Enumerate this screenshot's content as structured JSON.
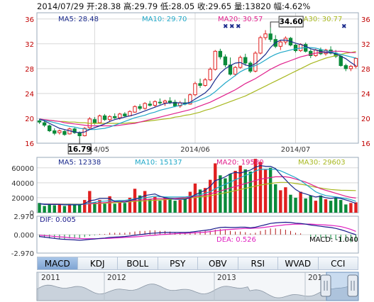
{
  "header": {
    "date": "2014/07/29",
    "open_label": "开:",
    "open": "28.38",
    "high_label": "高:",
    "high": "29.79",
    "low_label": "低:",
    "low": "28.05",
    "close_label": "收:",
    "close": "29.65",
    "volume_label": "量:",
    "volume": "13820",
    "change_label": "幅:",
    "change": "4.62%"
  },
  "colors": {
    "up": "#e02020",
    "down": "#0a8a3a",
    "ma5": "#1a2a8c",
    "ma10": "#20a8c8",
    "ma20": "#e0208c",
    "ma30": "#a8b820",
    "dif": "#1a1a8c",
    "dea": "#e020c0",
    "macd_up": "#b01818",
    "macd_down": "#0a8a3a",
    "grid": "#d8d8d8",
    "axis_text": "#c00000"
  },
  "legend": {
    "price": {
      "ma5": "MA5: 28.48",
      "ma10": "MA10: 29.70",
      "ma20": "MA20: 30.57",
      "ma30": "MA30: 30.77"
    },
    "volume": {
      "ma5": "MA5: 12338",
      "ma10": "MA10: 15137",
      "ma20": "MA20: 19580",
      "ma30": "MA30: 29603"
    },
    "macd": {
      "dif": "DIF: 0.005",
      "dea": "DEA: 0.526",
      "macd": "MACD: -1.040"
    }
  },
  "annotations": {
    "max_label": "34.60",
    "min_label": "16.79"
  },
  "tabs": [
    "MACD",
    "KDJ",
    "BOLL",
    "PSY",
    "OBV",
    "RSI",
    "WVAD",
    "CCI"
  ],
  "active_tab": "MACD",
  "navigator": {
    "year_labels": [
      "2011",
      "2012",
      "2013",
      "201"
    ]
  },
  "chart_data": [
    {
      "type": "candlestick",
      "name": "price",
      "x_ticks": [
        "2014/05",
        "2014/06",
        "2014/07"
      ],
      "y_ticks": [
        "16",
        "20",
        "24",
        "28",
        "32",
        "36"
      ],
      "ylim": [
        16,
        37
      ],
      "grid": true,
      "candles": [
        {
          "o": 19.6,
          "h": 19.9,
          "l": 19.1,
          "c": 19.4
        },
        {
          "o": 19.3,
          "h": 19.6,
          "l": 18.6,
          "c": 18.9
        },
        {
          "o": 18.8,
          "h": 19.0,
          "l": 17.8,
          "c": 18.0
        },
        {
          "o": 18.0,
          "h": 18.4,
          "l": 17.3,
          "c": 17.6
        },
        {
          "o": 17.7,
          "h": 18.2,
          "l": 17.4,
          "c": 18.0
        },
        {
          "o": 17.9,
          "h": 18.1,
          "l": 17.2,
          "c": 17.4
        },
        {
          "o": 17.5,
          "h": 18.5,
          "l": 17.4,
          "c": 18.3
        },
        {
          "o": 18.3,
          "h": 18.5,
          "l": 17.5,
          "c": 17.7
        },
        {
          "o": 17.7,
          "h": 17.9,
          "l": 16.79,
          "c": 17.2
        },
        {
          "o": 17.2,
          "h": 18.6,
          "l": 17.1,
          "c": 18.4
        },
        {
          "o": 18.5,
          "h": 20.2,
          "l": 18.3,
          "c": 19.9
        },
        {
          "o": 19.8,
          "h": 20.2,
          "l": 19.0,
          "c": 19.3
        },
        {
          "o": 19.3,
          "h": 20.6,
          "l": 19.2,
          "c": 20.4
        },
        {
          "o": 20.4,
          "h": 20.7,
          "l": 19.6,
          "c": 19.8
        },
        {
          "o": 19.8,
          "h": 20.5,
          "l": 19.4,
          "c": 20.3
        },
        {
          "o": 20.3,
          "h": 20.8,
          "l": 19.9,
          "c": 20.1
        },
        {
          "o": 20.1,
          "h": 20.9,
          "l": 19.8,
          "c": 20.7
        },
        {
          "o": 20.7,
          "h": 21.0,
          "l": 20.2,
          "c": 20.4
        },
        {
          "o": 20.4,
          "h": 21.3,
          "l": 20.3,
          "c": 21.1
        },
        {
          "o": 21.0,
          "h": 22.1,
          "l": 20.9,
          "c": 21.9
        },
        {
          "o": 21.9,
          "h": 22.3,
          "l": 21.3,
          "c": 21.6
        },
        {
          "o": 21.6,
          "h": 22.6,
          "l": 21.4,
          "c": 22.4
        },
        {
          "o": 22.3,
          "h": 22.8,
          "l": 21.9,
          "c": 22.1
        },
        {
          "o": 22.1,
          "h": 22.9,
          "l": 21.8,
          "c": 22.7
        },
        {
          "o": 22.6,
          "h": 23.2,
          "l": 22.2,
          "c": 22.5
        },
        {
          "o": 22.5,
          "h": 23.0,
          "l": 22.0,
          "c": 22.8
        },
        {
          "o": 22.8,
          "h": 23.4,
          "l": 22.3,
          "c": 22.6
        },
        {
          "o": 22.6,
          "h": 23.0,
          "l": 21.8,
          "c": 22.0
        },
        {
          "o": 22.0,
          "h": 22.8,
          "l": 21.7,
          "c": 22.5
        },
        {
          "o": 22.5,
          "h": 23.2,
          "l": 22.1,
          "c": 22.3
        },
        {
          "o": 22.3,
          "h": 24.0,
          "l": 22.2,
          "c": 23.8
        },
        {
          "o": 23.8,
          "h": 25.9,
          "l": 23.6,
          "c": 25.6
        },
        {
          "o": 25.6,
          "h": 26.4,
          "l": 24.9,
          "c": 25.3
        },
        {
          "o": 25.3,
          "h": 26.5,
          "l": 25.1,
          "c": 26.2
        },
        {
          "o": 26.2,
          "h": 28.2,
          "l": 26.0,
          "c": 27.9
        },
        {
          "o": 27.9,
          "h": 31.0,
          "l": 27.7,
          "c": 30.8
        },
        {
          "o": 30.8,
          "h": 31.2,
          "l": 29.5,
          "c": 29.9
        },
        {
          "o": 29.9,
          "h": 30.3,
          "l": 28.2,
          "c": 28.6
        },
        {
          "o": 28.6,
          "h": 29.8,
          "l": 26.9,
          "c": 27.1
        },
        {
          "o": 27.1,
          "h": 28.4,
          "l": 26.8,
          "c": 28.2
        },
        {
          "o": 28.2,
          "h": 30.1,
          "l": 28.0,
          "c": 29.8
        },
        {
          "o": 29.8,
          "h": 30.4,
          "l": 28.5,
          "c": 28.9
        },
        {
          "o": 28.9,
          "h": 29.2,
          "l": 27.3,
          "c": 27.6
        },
        {
          "o": 27.6,
          "h": 30.8,
          "l": 27.4,
          "c": 30.5
        },
        {
          "o": 30.5,
          "h": 33.3,
          "l": 30.3,
          "c": 33.0
        },
        {
          "o": 33.0,
          "h": 34.2,
          "l": 32.6,
          "c": 33.6
        },
        {
          "o": 33.6,
          "h": 34.6,
          "l": 32.3,
          "c": 32.7
        },
        {
          "o": 32.7,
          "h": 33.4,
          "l": 31.3,
          "c": 31.6
        },
        {
          "o": 31.6,
          "h": 32.6,
          "l": 31.0,
          "c": 32.3
        },
        {
          "o": 32.3,
          "h": 33.2,
          "l": 31.9,
          "c": 32.9
        },
        {
          "o": 32.9,
          "h": 33.1,
          "l": 31.6,
          "c": 31.8
        },
        {
          "o": 31.8,
          "h": 32.0,
          "l": 30.6,
          "c": 30.9
        },
        {
          "o": 30.9,
          "h": 32.1,
          "l": 30.7,
          "c": 31.9
        },
        {
          "o": 31.9,
          "h": 32.2,
          "l": 30.6,
          "c": 30.8
        },
        {
          "o": 30.8,
          "h": 31.1,
          "l": 29.7,
          "c": 30.1
        },
        {
          "o": 30.1,
          "h": 31.2,
          "l": 29.9,
          "c": 31.0
        },
        {
          "o": 31.0,
          "h": 31.4,
          "l": 30.2,
          "c": 30.4
        },
        {
          "o": 30.4,
          "h": 31.2,
          "l": 30.1,
          "c": 31.0
        },
        {
          "o": 31.0,
          "h": 31.6,
          "l": 30.3,
          "c": 30.5
        },
        {
          "o": 30.5,
          "h": 31.0,
          "l": 29.7,
          "c": 30.0
        },
        {
          "o": 30.0,
          "h": 30.4,
          "l": 28.3,
          "c": 28.5
        },
        {
          "o": 28.5,
          "h": 28.8,
          "l": 27.6,
          "c": 28.0
        },
        {
          "o": 28.0,
          "h": 28.6,
          "l": 27.6,
          "c": 28.38
        },
        {
          "o": 28.38,
          "h": 29.79,
          "l": 28.05,
          "c": 29.65
        }
      ],
      "ma5": [
        19.9,
        19.6,
        19.2,
        18.8,
        18.4,
        18.2,
        18.0,
        17.8,
        17.7,
        17.8,
        18.2,
        18.5,
        18.8,
        19.1,
        19.5,
        19.8,
        20.0,
        20.2,
        20.4,
        20.6,
        20.9,
        21.2,
        21.5,
        21.8,
        22.1,
        22.4,
        22.5,
        22.5,
        22.5,
        22.4,
        22.6,
        23.1,
        23.6,
        24.1,
        24.9,
        26.2,
        27.3,
        28.0,
        28.5,
        28.9,
        29.0,
        28.6,
        28.4,
        28.8,
        29.5,
        30.3,
        31.4,
        32.2,
        32.6,
        32.6,
        32.4,
        32.1,
        31.9,
        31.6,
        31.2,
        31.0,
        30.8,
        30.6,
        30.6,
        30.4,
        30.0,
        29.6,
        29.0,
        28.48
      ],
      "ma10": [
        19.8,
        19.7,
        19.5,
        19.3,
        19.1,
        18.9,
        18.7,
        18.6,
        18.4,
        18.3,
        18.2,
        18.2,
        18.3,
        18.4,
        18.6,
        18.9,
        19.2,
        19.5,
        19.8,
        20.1,
        20.3,
        20.5,
        20.8,
        21.0,
        21.3,
        21.5,
        21.7,
        21.9,
        22.1,
        22.3,
        22.5,
        22.7,
        23.0,
        23.3,
        23.7,
        24.3,
        25.0,
        25.7,
        26.3,
        26.9,
        27.5,
        27.9,
        28.2,
        28.5,
        28.9,
        29.4,
        29.9,
        30.3,
        30.6,
        30.8,
        31.0,
        31.2,
        31.3,
        31.4,
        31.4,
        31.3,
        31.1,
        30.9,
        30.7,
        30.5,
        30.3,
        30.1,
        29.9,
        29.7
      ],
      "ma20": [
        19.9,
        19.8,
        19.7,
        19.6,
        19.5,
        19.3,
        19.2,
        19.1,
        19.0,
        18.9,
        18.8,
        18.8,
        18.8,
        18.8,
        18.8,
        18.8,
        18.9,
        19.0,
        19.1,
        19.2,
        19.4,
        19.6,
        19.8,
        20.0,
        20.2,
        20.4,
        20.6,
        20.8,
        21.0,
        21.2,
        21.4,
        21.7,
        22.0,
        22.3,
        22.6,
        23.0,
        23.4,
        23.8,
        24.2,
        24.6,
        25.1,
        25.6,
        26.0,
        26.4,
        26.9,
        27.4,
        27.9,
        28.3,
        28.7,
        29.0,
        29.3,
        29.6,
        29.9,
        30.1,
        30.3,
        30.5,
        30.6,
        30.7,
        30.8,
        30.8,
        30.8,
        30.7,
        30.6,
        30.57
      ],
      "ma30": [
        19.8,
        19.7,
        19.7,
        19.6,
        19.5,
        19.5,
        19.4,
        19.4,
        19.3,
        19.3,
        19.2,
        19.2,
        19.2,
        19.2,
        19.2,
        19.2,
        19.2,
        19.2,
        19.3,
        19.3,
        19.4,
        19.5,
        19.6,
        19.7,
        19.8,
        19.9,
        20.0,
        20.2,
        20.3,
        20.5,
        20.6,
        20.8,
        21.0,
        21.3,
        21.5,
        21.8,
        22.1,
        22.4,
        22.7,
        23.0,
        23.3,
        23.6,
        24.0,
        24.4,
        24.8,
        25.2,
        25.6,
        26.0,
        26.4,
        26.8,
        27.2,
        27.6,
        28.0,
        28.4,
        28.8,
        29.1,
        29.4,
        29.7,
        29.9,
        30.1,
        30.3,
        30.5,
        30.6,
        30.77
      ]
    },
    {
      "type": "bar",
      "name": "volume",
      "y_ticks": [
        "0",
        "20000",
        "40000",
        "60000"
      ],
      "ylim": [
        0,
        74000
      ],
      "values": [
        13000,
        9000,
        12000,
        10000,
        11000,
        9000,
        12000,
        10000,
        11000,
        17000,
        29000,
        14000,
        17000,
        12000,
        22000,
        12000,
        14000,
        13000,
        20000,
        32000,
        23000,
        29000,
        18000,
        21000,
        16000,
        20000,
        18000,
        16000,
        17000,
        19000,
        28000,
        39000,
        31000,
        33000,
        44000,
        66000,
        50000,
        46000,
        52000,
        56000,
        63000,
        58000,
        55000,
        72000,
        68000,
        58000,
        60000,
        38000,
        30000,
        34000,
        24000,
        20000,
        28000,
        19000,
        23000,
        16000,
        23000,
        18000,
        16000,
        20000,
        17000,
        11000,
        13000,
        13820
      ],
      "ma5": [
        12000,
        11000,
        11000,
        11000,
        11000,
        10500,
        10500,
        10500,
        10500,
        12000,
        16000,
        17000,
        19000,
        19000,
        19000,
        15000,
        15000,
        14000,
        16000,
        18000,
        20000,
        23000,
        24000,
        25000,
        22000,
        20000,
        19000,
        18000,
        18000,
        18000,
        20000,
        24000,
        27000,
        30000,
        35000,
        43000,
        45000,
        48000,
        52000,
        54000,
        53000,
        55000,
        57000,
        61000,
        63000,
        62000,
        62000,
        59000,
        51000,
        44000,
        37000,
        31000,
        27000,
        25000,
        23000,
        21000,
        22000,
        20000,
        19000,
        20000,
        19000,
        17000,
        15000,
        12338
      ],
      "ma10": [
        12000,
        11500,
        11200,
        11000,
        11000,
        11000,
        11000,
        11000,
        11000,
        11500,
        13000,
        14000,
        15000,
        15500,
        16000,
        16000,
        16500,
        16500,
        17500,
        18500,
        19000,
        20000,
        21000,
        22000,
        21500,
        21000,
        21000,
        21000,
        21000,
        21000,
        22000,
        23000,
        24000,
        26000,
        28000,
        32000,
        35000,
        38000,
        41000,
        44000,
        47000,
        50000,
        52000,
        56000,
        58000,
        58000,
        58000,
        58000,
        56000,
        53000,
        50000,
        47000,
        43000,
        38000,
        33000,
        28000,
        25000,
        23000,
        22000,
        21000,
        20000,
        19000,
        17500,
        15137
      ],
      "ma20": [
        12000,
        11800,
        11600,
        11500,
        11400,
        11300,
        11200,
        11200,
        11200,
        11400,
        12000,
        12500,
        13000,
        13500,
        14000,
        14500,
        15000,
        15500,
        16000,
        16500,
        17000,
        17500,
        18000,
        18500,
        18500,
        18500,
        19000,
        19000,
        19500,
        20000,
        20500,
        21500,
        22500,
        23500,
        25000,
        27000,
        29000,
        31000,
        33000,
        35000,
        37000,
        39000,
        41000,
        43000,
        45000,
        46000,
        47000,
        48000,
        48000,
        48000,
        47000,
        45000,
        43000,
        41000,
        38000,
        35000,
        32000,
        30000,
        28000,
        26000,
        24000,
        22000,
        20500,
        19580
      ],
      "ma30": [
        11500,
        11500,
        11500,
        11500,
        11500,
        11500,
        11500,
        11500,
        11500,
        11600,
        11800,
        12000,
        12300,
        12600,
        13000,
        13400,
        13800,
        14200,
        14600,
        15000,
        15400,
        15800,
        16200,
        16600,
        17000,
        17400,
        17800,
        18200,
        18600,
        19000,
        19600,
        20300,
        21000,
        21800,
        22800,
        24000,
        25300,
        26600,
        28000,
        29500,
        31000,
        32500,
        34000,
        35500,
        37000,
        38000,
        39000,
        40000,
        40500,
        40500,
        40000,
        39000,
        38000,
        37000,
        35500,
        34000,
        33000,
        32000,
        31000,
        30500,
        30000,
        29900,
        29800,
        29603
      ]
    },
    {
      "type": "macd",
      "name": "macd",
      "y_ticks": [
        "-2.970",
        "0.000",
        "2.970"
      ],
      "ylim": [
        -2.97,
        2.97
      ],
      "dif": [
        -0.3,
        -0.4,
        -0.5,
        -0.6,
        -0.7,
        -0.75,
        -0.8,
        -0.85,
        -0.9,
        -0.85,
        -0.75,
        -0.7,
        -0.6,
        -0.55,
        -0.45,
        -0.4,
        -0.35,
        -0.3,
        -0.2,
        -0.1,
        0.0,
        0.1,
        0.2,
        0.25,
        0.3,
        0.35,
        0.35,
        0.35,
        0.35,
        0.35,
        0.4,
        0.5,
        0.6,
        0.7,
        0.8,
        1.0,
        1.15,
        1.2,
        1.15,
        1.15,
        1.2,
        1.2,
        1.1,
        1.2,
        1.4,
        1.6,
        1.8,
        1.9,
        1.95,
        2.0,
        1.95,
        1.85,
        1.8,
        1.7,
        1.55,
        1.45,
        1.35,
        1.25,
        1.15,
        1.0,
        0.8,
        0.55,
        0.25,
        0.005
      ],
      "dea": [
        -0.1,
        -0.15,
        -0.2,
        -0.3,
        -0.35,
        -0.4,
        -0.5,
        -0.55,
        -0.6,
        -0.65,
        -0.65,
        -0.65,
        -0.65,
        -0.6,
        -0.6,
        -0.55,
        -0.5,
        -0.45,
        -0.4,
        -0.35,
        -0.3,
        -0.2,
        -0.15,
        -0.1,
        0.0,
        0.05,
        0.1,
        0.15,
        0.2,
        0.2,
        0.25,
        0.3,
        0.35,
        0.4,
        0.5,
        0.6,
        0.7,
        0.8,
        0.85,
        0.9,
        0.95,
        1.0,
        1.0,
        1.05,
        1.1,
        1.2,
        1.3,
        1.4,
        1.5,
        1.6,
        1.65,
        1.7,
        1.7,
        1.7,
        1.7,
        1.65,
        1.6,
        1.55,
        1.5,
        1.4,
        1.3,
        1.1,
        0.85,
        0.526
      ]
    }
  ]
}
